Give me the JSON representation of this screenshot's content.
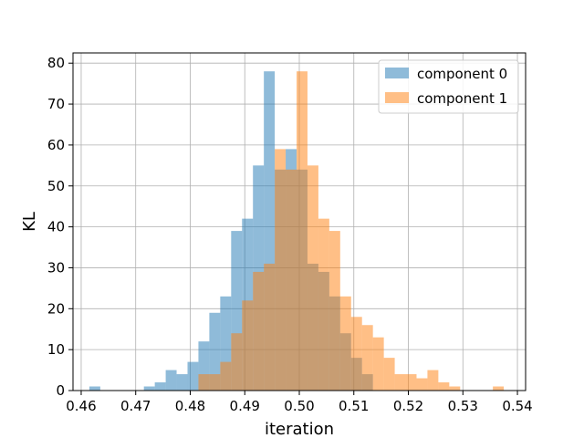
{
  "chart_data": {
    "type": "bar",
    "xlabel": "iteration",
    "ylabel": "KL",
    "xlim": [
      0.4585,
      0.5415
    ],
    "ylim": [
      0,
      82.5
    ],
    "xticks": [
      0.46,
      0.47,
      0.48,
      0.49,
      0.5,
      0.51,
      0.52,
      0.53,
      0.54
    ],
    "xtick_labels": [
      "0.46",
      "0.47",
      "0.48",
      "0.49",
      "0.50",
      "0.51",
      "0.52",
      "0.53",
      "0.54"
    ],
    "yticks": [
      0,
      10,
      20,
      30,
      40,
      50,
      60,
      70,
      80
    ],
    "ytick_labels": [
      "0",
      "10",
      "20",
      "30",
      "40",
      "50",
      "60",
      "70",
      "80"
    ],
    "grid": true,
    "legend_position": "top-right",
    "colors": {
      "component_0": "#1f77b4",
      "component_1": "#ff7f0e"
    },
    "bar_alpha": 0.5,
    "series": [
      {
        "name": "component 0",
        "bin_start": 0.4615,
        "bin_width": 0.002,
        "values": [
          1,
          0,
          0,
          0,
          0,
          1,
          2,
          5,
          4,
          7,
          12,
          19,
          23,
          39,
          42,
          55,
          78,
          54,
          59,
          54,
          31,
          29,
          23,
          14,
          8,
          4,
          0,
          0,
          0,
          0,
          0,
          0,
          0,
          0,
          0,
          0,
          0,
          0
        ]
      },
      {
        "name": "component 1",
        "bin_start": 0.4615,
        "bin_width": 0.002,
        "values": [
          0,
          0,
          0,
          0,
          0,
          0,
          0,
          0,
          0,
          0,
          4,
          4,
          7,
          14,
          22,
          29,
          31,
          59,
          54,
          78,
          55,
          42,
          39,
          23,
          18,
          16,
          13,
          8,
          4,
          4,
          3,
          5,
          2,
          1,
          0,
          0,
          0,
          1
        ]
      }
    ]
  }
}
